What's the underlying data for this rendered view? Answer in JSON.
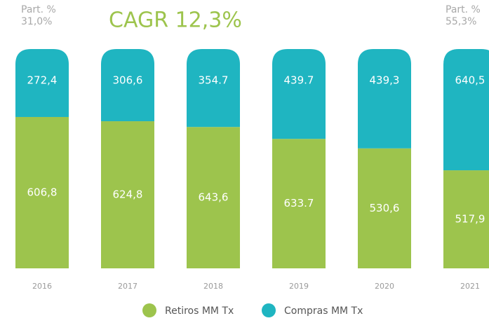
{
  "chart_data": {
    "type": "bar",
    "stacked": true,
    "normalized": true,
    "title": "CAGR 12,3%",
    "annotations": [
      "Part. %",
      "31,0%",
      "Part. %",
      "55,3%"
    ],
    "categories": [
      "2016",
      "2017",
      "2018",
      "2019",
      "2020",
      "2021"
    ],
    "series": [
      {
        "name": "Retiros MM Tx",
        "color": "#9dc44d",
        "values": [
          606.8,
          624.8,
          643.6,
          633.7,
          530.6,
          517.9
        ],
        "value_labels": [
          "606,8",
          "624,8",
          "643,6",
          "633.7",
          "530,6",
          "517,9"
        ]
      },
      {
        "name": "Compras MM Tx",
        "color": "#1fb5c1",
        "values": [
          272.4,
          306.6,
          354.7,
          439.7,
          439.3,
          640.5
        ],
        "value_labels": [
          "272,4",
          "306,6",
          "354.7",
          "439.7",
          "439,3",
          "640,5"
        ]
      }
    ]
  }
}
